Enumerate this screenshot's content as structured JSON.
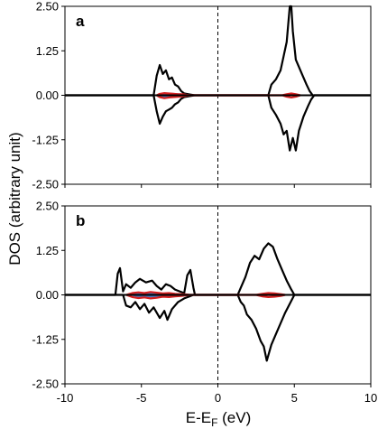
{
  "chart_data": {
    "type": "line",
    "ylabel": "DOS (arbitrary unit)",
    "xlabel_main": "E-E",
    "xlabel_sub": "F",
    "xlabel_unit": " (eV)",
    "xlim": [
      -10,
      10
    ],
    "xticks": [
      -10,
      -5,
      0,
      5,
      10
    ],
    "xtick_labels": [
      "-10",
      "-5",
      "0",
      "5",
      "10"
    ],
    "ylim": [
      -2.5,
      2.5
    ],
    "yticks": [
      2.5,
      1.25,
      0,
      -1.25,
      -2.5
    ],
    "ytick_labels": [
      "2.50",
      "1.25",
      "0.00",
      "-1.25",
      "-2.50"
    ],
    "fermi_level": 0,
    "colors": {
      "total": "#000000",
      "red": "#d42020",
      "blue": "#4a78c0"
    },
    "panels": [
      {
        "label": "a",
        "total_up": [
          [
            -10,
            0
          ],
          [
            -4.2,
            0
          ],
          [
            -4,
            0.55
          ],
          [
            -3.8,
            0.85
          ],
          [
            -3.6,
            0.6
          ],
          [
            -3.4,
            0.7
          ],
          [
            -3.2,
            0.45
          ],
          [
            -3,
            0.5
          ],
          [
            -2.8,
            0.3
          ],
          [
            -2.6,
            0.25
          ],
          [
            -2.4,
            0.12
          ],
          [
            -2.2,
            0.05
          ],
          [
            -1.8,
            0.02
          ],
          [
            -1.5,
            0
          ],
          [
            3.3,
            0
          ],
          [
            3.5,
            0.3
          ],
          [
            3.8,
            0.45
          ],
          [
            4.1,
            0.7
          ],
          [
            4.3,
            1.1
          ],
          [
            4.5,
            1.5
          ],
          [
            4.7,
            2.5
          ],
          [
            4.8,
            2.5
          ],
          [
            4.9,
            1.8
          ],
          [
            5.1,
            1.0
          ],
          [
            5.5,
            0.6
          ],
          [
            5.8,
            0.3
          ],
          [
            6.0,
            0.12
          ],
          [
            6.2,
            0
          ],
          [
            10,
            0
          ]
        ],
        "total_dn": [
          [
            -10,
            0
          ],
          [
            -4.2,
            0
          ],
          [
            -4,
            -0.45
          ],
          [
            -3.8,
            -0.8
          ],
          [
            -3.6,
            -0.6
          ],
          [
            -3.4,
            -0.45
          ],
          [
            -3.2,
            -0.4
          ],
          [
            -3,
            -0.35
          ],
          [
            -2.8,
            -0.25
          ],
          [
            -2.6,
            -0.2
          ],
          [
            -2.4,
            -0.1
          ],
          [
            -2.2,
            -0.05
          ],
          [
            -1.8,
            -0.02
          ],
          [
            -1.5,
            0
          ],
          [
            3.3,
            0
          ],
          [
            3.5,
            -0.35
          ],
          [
            3.8,
            -0.55
          ],
          [
            4.1,
            -0.8
          ],
          [
            4.3,
            -1.1
          ],
          [
            4.5,
            -1.0
          ],
          [
            4.7,
            -1.55
          ],
          [
            4.9,
            -1.2
          ],
          [
            5.1,
            -1.55
          ],
          [
            5.3,
            -1.0
          ],
          [
            5.6,
            -0.6
          ],
          [
            5.9,
            -0.3
          ],
          [
            6.1,
            -0.12
          ],
          [
            6.3,
            0
          ],
          [
            10,
            0
          ]
        ],
        "red_up": [
          [
            -4,
            0
          ],
          [
            -3.8,
            0.04
          ],
          [
            -3.5,
            0.06
          ],
          [
            -3.2,
            0.05
          ],
          [
            -2.9,
            0.04
          ],
          [
            -2.6,
            0.03
          ],
          [
            -2.3,
            0.03
          ],
          [
            -2,
            0.01
          ],
          [
            -1.8,
            0
          ],
          [
            4.2,
            0
          ],
          [
            4.5,
            0.03
          ],
          [
            4.8,
            0.05
          ],
          [
            5.1,
            0.03
          ],
          [
            5.4,
            0
          ]
        ],
        "red_dn": [
          [
            -4,
            0
          ],
          [
            -3.8,
            -0.05
          ],
          [
            -3.5,
            -0.08
          ],
          [
            -3.2,
            -0.06
          ],
          [
            -2.9,
            -0.05
          ],
          [
            -2.6,
            -0.04
          ],
          [
            -2.3,
            -0.03
          ],
          [
            -2,
            -0.01
          ],
          [
            -1.8,
            0
          ],
          [
            4.2,
            0
          ],
          [
            4.5,
            -0.04
          ],
          [
            4.8,
            -0.06
          ],
          [
            5.1,
            -0.04
          ],
          [
            5.4,
            0
          ]
        ],
        "blue_up": [
          [
            -3.8,
            0
          ],
          [
            -3.5,
            0.03
          ],
          [
            -3.1,
            0.04
          ],
          [
            -2.6,
            0.03
          ],
          [
            -2.2,
            0.02
          ],
          [
            -1.9,
            0
          ]
        ],
        "blue_dn": [
          [
            -3.8,
            0
          ],
          [
            -3.5,
            -0.03
          ],
          [
            -3.1,
            -0.04
          ],
          [
            -2.6,
            -0.03
          ],
          [
            -2.2,
            -0.02
          ],
          [
            -1.9,
            0
          ]
        ]
      },
      {
        "label": "b",
        "total_up": [
          [
            -10,
            0
          ],
          [
            -6.7,
            0
          ],
          [
            -6.55,
            0.6
          ],
          [
            -6.4,
            0.75
          ],
          [
            -6.2,
            0.1
          ],
          [
            -6.0,
            0.3
          ],
          [
            -5.7,
            0.2
          ],
          [
            -5.4,
            0.35
          ],
          [
            -5.1,
            0.45
          ],
          [
            -4.7,
            0.35
          ],
          [
            -4.3,
            0.4
          ],
          [
            -4.0,
            0.25
          ],
          [
            -3.7,
            0.15
          ],
          [
            -3.4,
            0.3
          ],
          [
            -3.1,
            0.25
          ],
          [
            -2.8,
            0.15
          ],
          [
            -2.5,
            0.1
          ],
          [
            -2.2,
            0.05
          ],
          [
            -2.0,
            0.55
          ],
          [
            -1.8,
            0.7
          ],
          [
            -1.6,
            0.2
          ],
          [
            -1.5,
            0
          ],
          [
            1.3,
            0
          ],
          [
            1.5,
            0.2
          ],
          [
            1.8,
            0.5
          ],
          [
            2.1,
            0.9
          ],
          [
            2.4,
            1.1
          ],
          [
            2.7,
            1.0
          ],
          [
            3.0,
            1.3
          ],
          [
            3.3,
            1.45
          ],
          [
            3.6,
            1.35
          ],
          [
            3.9,
            1.0
          ],
          [
            4.2,
            0.7
          ],
          [
            4.5,
            0.4
          ],
          [
            4.8,
            0.15
          ],
          [
            5.0,
            0
          ],
          [
            10,
            0
          ]
        ],
        "total_dn": [
          [
            -10,
            0
          ],
          [
            -6.2,
            0
          ],
          [
            -6.0,
            -0.3
          ],
          [
            -5.7,
            -0.35
          ],
          [
            -5.4,
            -0.2
          ],
          [
            -5.1,
            -0.4
          ],
          [
            -4.8,
            -0.25
          ],
          [
            -4.5,
            -0.5
          ],
          [
            -4.2,
            -0.35
          ],
          [
            -3.8,
            -0.65
          ],
          [
            -3.5,
            -0.45
          ],
          [
            -3.3,
            -0.7
          ],
          [
            -3.0,
            -0.4
          ],
          [
            -2.6,
            -0.2
          ],
          [
            -2.2,
            -0.1
          ],
          [
            -1.9,
            -0.05
          ],
          [
            -1.6,
            0
          ],
          [
            1.3,
            0
          ],
          [
            1.5,
            -0.2
          ],
          [
            1.7,
            -0.3
          ],
          [
            1.9,
            -0.55
          ],
          [
            2.2,
            -0.7
          ],
          [
            2.5,
            -0.95
          ],
          [
            2.8,
            -1.3
          ],
          [
            3.0,
            -1.45
          ],
          [
            3.2,
            -1.85
          ],
          [
            3.5,
            -1.4
          ],
          [
            3.8,
            -1.1
          ],
          [
            4.1,
            -0.8
          ],
          [
            4.4,
            -0.5
          ],
          [
            4.7,
            -0.25
          ],
          [
            5.0,
            0
          ],
          [
            10,
            0
          ]
        ],
        "red_up": [
          [
            -6,
            0
          ],
          [
            -5.6,
            0.05
          ],
          [
            -5.2,
            0.07
          ],
          [
            -4.8,
            0.05
          ],
          [
            -4.4,
            0.08
          ],
          [
            -4.0,
            0.06
          ],
          [
            -3.6,
            0.04
          ],
          [
            -3.2,
            0.05
          ],
          [
            -2.8,
            0.03
          ],
          [
            -2.4,
            0.02
          ],
          [
            -2.0,
            0.01
          ],
          [
            -1.8,
            0
          ],
          [
            2.5,
            0
          ],
          [
            2.9,
            0.03
          ],
          [
            3.3,
            0.05
          ],
          [
            3.7,
            0.04
          ],
          [
            4.1,
            0.02
          ],
          [
            4.4,
            0
          ]
        ],
        "red_dn": [
          [
            -6,
            0
          ],
          [
            -5.6,
            -0.06
          ],
          [
            -5.2,
            -0.09
          ],
          [
            -4.8,
            -0.07
          ],
          [
            -4.4,
            -0.1
          ],
          [
            -4.0,
            -0.08
          ],
          [
            -3.6,
            -0.05
          ],
          [
            -3.2,
            -0.06
          ],
          [
            -2.8,
            -0.04
          ],
          [
            -2.4,
            -0.03
          ],
          [
            -2.0,
            -0.01
          ],
          [
            -1.8,
            0
          ],
          [
            2.5,
            0
          ],
          [
            2.9,
            -0.04
          ],
          [
            3.3,
            -0.06
          ],
          [
            3.7,
            -0.05
          ],
          [
            4.1,
            -0.03
          ],
          [
            4.4,
            0
          ]
        ],
        "blue_up": [
          [
            -5.6,
            0
          ],
          [
            -5.2,
            0.04
          ],
          [
            -4.7,
            0.05
          ],
          [
            -4.2,
            0.04
          ],
          [
            -3.6,
            0.03
          ],
          [
            -3.0,
            0.02
          ],
          [
            -2.6,
            0
          ]
        ],
        "blue_dn": [
          [
            -5.6,
            0
          ],
          [
            -5.2,
            -0.04
          ],
          [
            -4.7,
            -0.05
          ],
          [
            -4.2,
            -0.04
          ],
          [
            -3.6,
            -0.03
          ],
          [
            -3.0,
            -0.02
          ],
          [
            -2.6,
            0
          ]
        ]
      }
    ]
  }
}
